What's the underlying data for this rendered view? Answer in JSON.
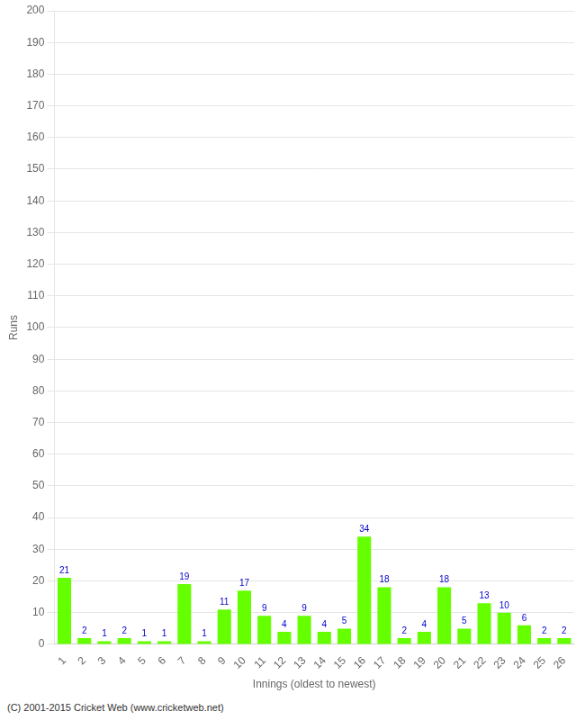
{
  "chart_data": {
    "type": "bar",
    "categories": [
      "1",
      "2",
      "3",
      "4",
      "5",
      "6",
      "7",
      "8",
      "9",
      "10",
      "11",
      "12",
      "13",
      "14",
      "15",
      "16",
      "17",
      "18",
      "19",
      "20",
      "21",
      "22",
      "23",
      "24",
      "25",
      "26"
    ],
    "values": [
      21,
      2,
      1,
      2,
      1,
      1,
      19,
      1,
      11,
      17,
      9,
      4,
      9,
      4,
      5,
      34,
      18,
      2,
      4,
      18,
      5,
      13,
      10,
      6,
      2,
      2
    ],
    "color": "#66ff00",
    "xlabel": "Innings (oldest to newest)",
    "ylabel": "Runs",
    "ylim": [
      0,
      200
    ],
    "yticks": [
      0,
      10,
      20,
      30,
      40,
      50,
      60,
      70,
      80,
      90,
      100,
      110,
      120,
      130,
      140,
      150,
      160,
      170,
      180,
      190,
      200
    ],
    "grid": true,
    "data_labels": true,
    "annotations": [
      "(C) 2001-2015 Cricket Web (www.cricketweb.net)"
    ]
  }
}
